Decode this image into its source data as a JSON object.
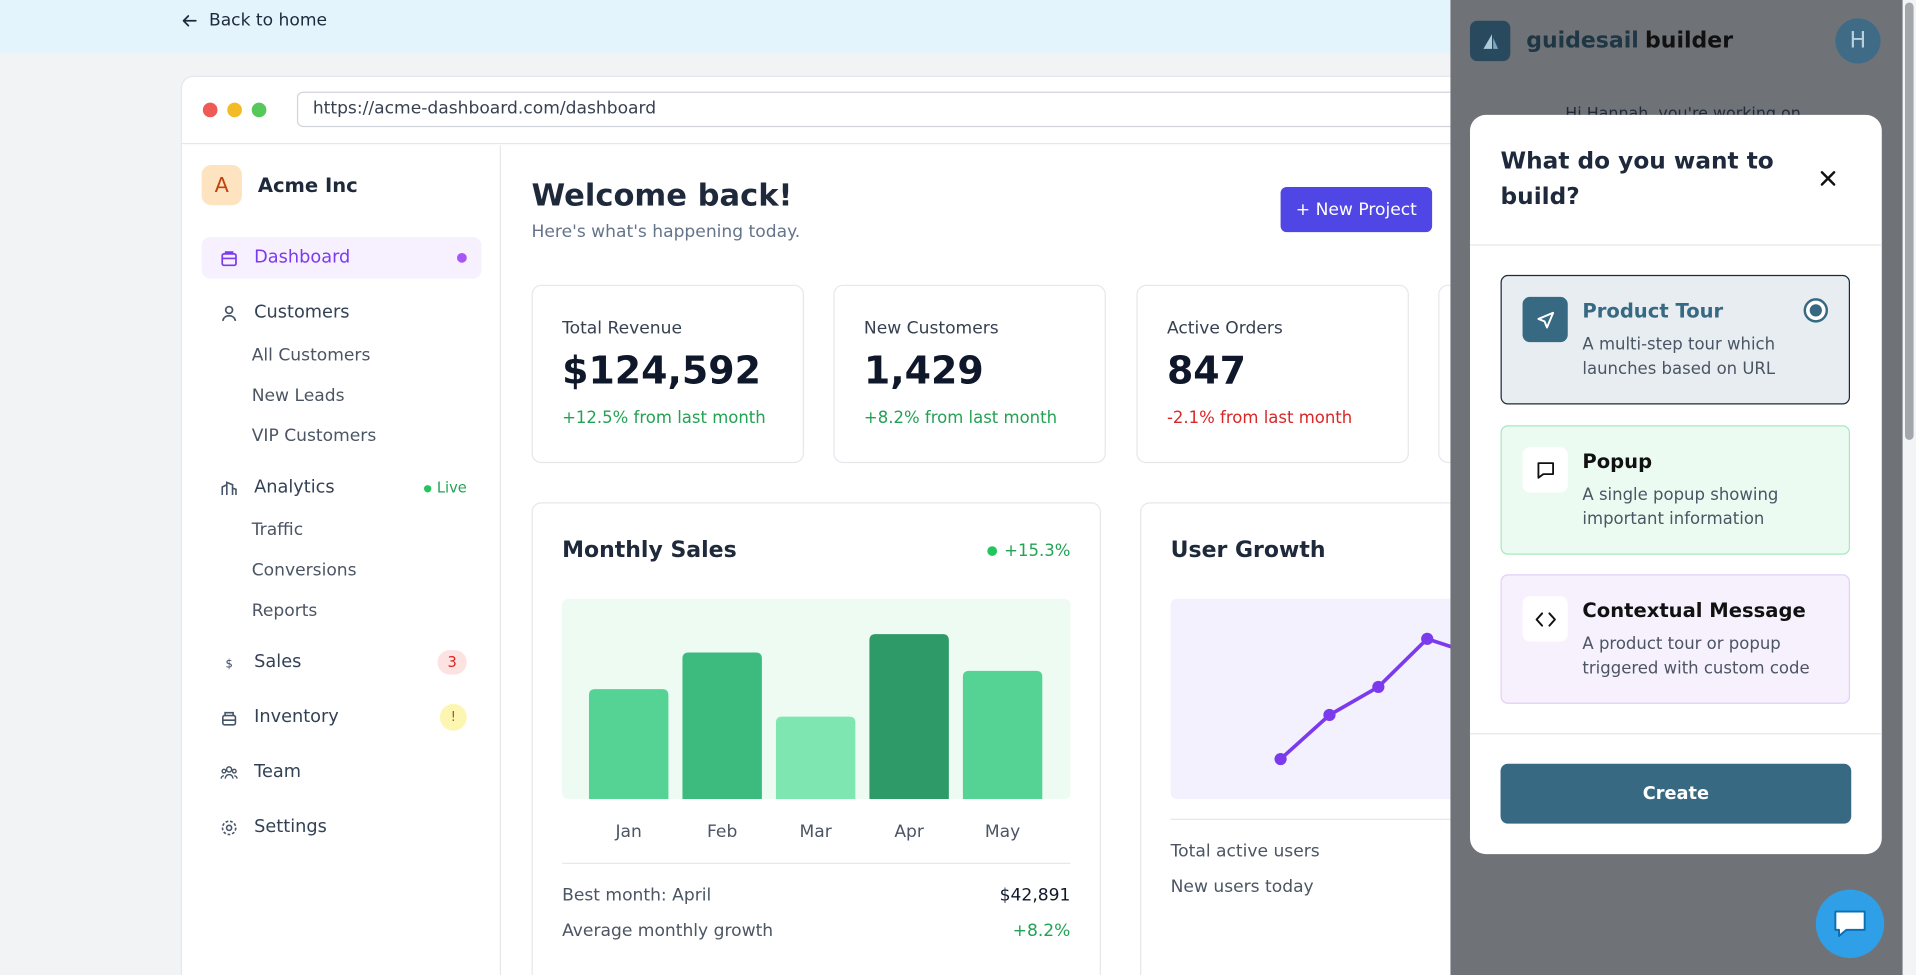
{
  "topbar": {
    "back_label": "Back to home"
  },
  "browser": {
    "url": "https://acme-dashboard.com/dashboard"
  },
  "sidebar": {
    "brand_initial": "A",
    "brand_name": "Acme Inc",
    "items": [
      {
        "label": "Dashboard",
        "icon": "dashboard-icon"
      },
      {
        "label": "Customers",
        "icon": "user-icon",
        "sub": [
          "All Customers",
          "New Leads",
          "VIP Customers"
        ]
      },
      {
        "label": "Analytics",
        "icon": "analytics-icon",
        "badge": "Live",
        "sub": [
          "Traffic",
          "Conversions",
          "Reports"
        ]
      },
      {
        "label": "Sales",
        "icon": "dollar-icon",
        "badge": "3"
      },
      {
        "label": "Inventory",
        "icon": "box-icon",
        "badge": "!"
      },
      {
        "label": "Team",
        "icon": "team-icon"
      },
      {
        "label": "Settings",
        "icon": "gear-icon"
      }
    ]
  },
  "header": {
    "title": "Welcome back!",
    "subtitle": "Here's what's happening today.",
    "new_project": "+ New Project"
  },
  "stats": [
    {
      "label": "Total Revenue",
      "value": "$124,592",
      "change": "+12.5% from last month"
    },
    {
      "label": "New Customers",
      "value": "1,429",
      "change": "+8.2% from last month"
    },
    {
      "label": "Active Orders",
      "value": "847",
      "change": "-2.1% from last month"
    }
  ],
  "sales_panel": {
    "title": "Monthly Sales",
    "badge": "+15.3%",
    "best_label": "Best month: April",
    "best_value": "$42,891",
    "growth_label": "Average monthly growth",
    "growth_value": "+8.2%"
  },
  "chart_data": [
    {
      "type": "bar",
      "categories": [
        "Jan",
        "Feb",
        "Mar",
        "Apr",
        "May"
      ],
      "values": [
        60,
        80,
        45,
        90,
        70
      ],
      "colors": [
        "#55d395",
        "#3dbb7e",
        "#7ee6b1",
        "#2e9a67",
        "#55d395"
      ],
      "ylim": [
        0,
        100
      ]
    },
    {
      "type": "line",
      "x": [
        1,
        2,
        3,
        4,
        5
      ],
      "values": [
        20,
        42,
        56,
        80,
        72
      ],
      "color": "#7c3aed",
      "ylim": [
        0,
        100
      ]
    }
  ],
  "growth_panel": {
    "title": "User Growth",
    "stat1": "Total active users",
    "stat2": "New users today"
  },
  "builder": {
    "brand_a": "guidesail",
    "brand_b": "builder",
    "user_initial": "H",
    "hint": "Hi Hannah, you're working on",
    "modal": {
      "title": "What do you want to build?",
      "options": [
        {
          "title": "Product Tour",
          "desc": "A multi-step tour which launches based on URL",
          "icon": "send-icon"
        },
        {
          "title": "Popup",
          "desc": "A single popup showing important information",
          "icon": "message-icon"
        },
        {
          "title": "Contextual Message",
          "desc": "A product tour or popup triggered with custom code",
          "icon": "code-icon"
        }
      ],
      "create_label": "Create"
    }
  }
}
